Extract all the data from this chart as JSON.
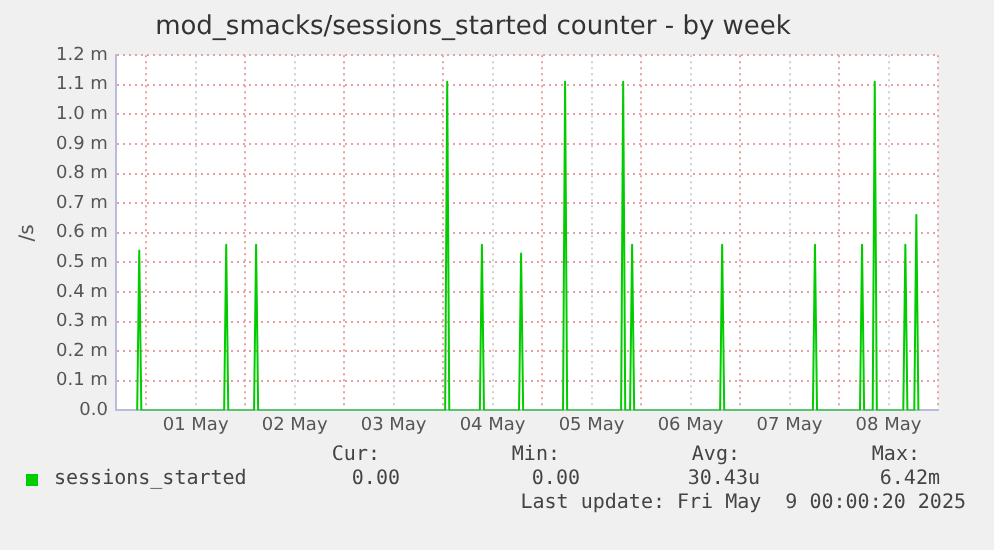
{
  "chart_data": {
    "type": "line",
    "title": "mod_smacks/sessions_started counter - by week",
    "ylabel": "/s",
    "xlim": [
      "2025-04-30T16:40",
      "2025-05-09T00:00"
    ],
    "xticks": [
      {
        "value": "2025-05-01T00:00",
        "label": null
      },
      {
        "value": "2025-05-01T12:00",
        "label": "01 May"
      },
      {
        "value": "2025-05-02T00:00",
        "label": null
      },
      {
        "value": "2025-05-02T12:00",
        "label": "02 May"
      },
      {
        "value": "2025-05-03T00:00",
        "label": null
      },
      {
        "value": "2025-05-03T12:00",
        "label": "03 May"
      },
      {
        "value": "2025-05-04T00:00",
        "label": null
      },
      {
        "value": "2025-05-04T12:00",
        "label": "04 May"
      },
      {
        "value": "2025-05-05T00:00",
        "label": null
      },
      {
        "value": "2025-05-05T12:00",
        "label": "05 May"
      },
      {
        "value": "2025-05-06T00:00",
        "label": null
      },
      {
        "value": "2025-05-06T12:00",
        "label": "06 May"
      },
      {
        "value": "2025-05-07T00:00",
        "label": null
      },
      {
        "value": "2025-05-07T12:00",
        "label": "07 May"
      },
      {
        "value": "2025-05-08T00:00",
        "label": null
      },
      {
        "value": "2025-05-08T12:00",
        "label": "08 May"
      },
      {
        "value": "2025-05-09T00:00",
        "label": null
      }
    ],
    "ylim": [
      0,
      1.2
    ],
    "yticks": [
      {
        "value": 0,
        "label": "0.0"
      },
      {
        "value": 0.1,
        "label": "0.1 m"
      },
      {
        "value": 0.2,
        "label": "0.2 m"
      },
      {
        "value": 0.3,
        "label": "0.3 m"
      },
      {
        "value": 0.4,
        "label": "0.4 m"
      },
      {
        "value": 0.5,
        "label": "0.5 m"
      },
      {
        "value": 0.6,
        "label": "0.6 m"
      },
      {
        "value": 0.7,
        "label": "0.7 m"
      },
      {
        "value": 0.8,
        "label": "0.8 m"
      },
      {
        "value": 0.9,
        "label": "0.9 m"
      },
      {
        "value": 1.0,
        "label": "1.0 m"
      },
      {
        "value": 1.1,
        "label": "1.1 m"
      },
      {
        "value": 1.2,
        "label": "1.2 m"
      }
    ],
    "grid": true,
    "legend": "bottom",
    "marker": "none",
    "line_style": "solid",
    "series": [
      {
        "name": "sessions_started",
        "color": "#00cc00",
        "x": [
          "2025-04-30T21:50",
          "2025-04-30T22:20",
          "2025-04-30T22:50",
          "2025-05-01T18:55",
          "2025-05-01T19:25",
          "2025-05-01T19:55",
          "2025-05-02T02:10",
          "2025-05-02T02:40",
          "2025-05-02T03:10",
          "2025-05-04T00:30",
          "2025-05-04T01:00",
          "2025-05-04T01:30",
          "2025-05-04T08:55",
          "2025-05-04T09:25",
          "2025-05-04T09:55",
          "2025-05-04T18:25",
          "2025-05-04T18:55",
          "2025-05-04T19:25",
          "2025-05-05T05:05",
          "2025-05-05T05:35",
          "2025-05-05T06:05",
          "2025-05-05T19:10",
          "2025-05-05T19:40",
          "2025-05-05T20:10",
          "2025-05-05T21:20",
          "2025-05-05T21:50",
          "2025-05-05T22:20",
          "2025-05-06T19:10",
          "2025-05-06T19:40",
          "2025-05-06T20:10",
          "2025-05-07T17:40",
          "2025-05-07T18:10",
          "2025-05-07T18:40",
          "2025-05-08T05:05",
          "2025-05-08T05:35",
          "2025-05-08T06:05",
          "2025-05-08T08:10",
          "2025-05-08T08:40",
          "2025-05-08T09:10",
          "2025-05-08T15:35",
          "2025-05-08T16:05",
          "2025-05-08T16:35",
          "2025-05-08T18:15",
          "2025-05-08T18:45",
          "2025-05-08T19:15"
        ],
        "values": [
          0,
          0.54,
          0,
          0,
          0.56,
          0,
          0,
          0.56,
          0,
          0,
          1.11,
          0,
          0,
          0.56,
          0,
          0,
          0.53,
          0,
          0,
          1.11,
          0,
          0,
          1.11,
          0,
          0,
          0.56,
          0,
          0,
          0.56,
          0,
          0,
          0.56,
          0,
          0,
          0.56,
          0,
          0,
          1.11,
          0,
          0,
          0.56,
          0,
          0,
          0.66,
          0
        ]
      }
    ],
    "annotations": [
      "Cur:",
      "Min:",
      "Avg:",
      "Max:",
      "0.00",
      "0.00",
      "30.43u",
      "6.42m",
      "Last update: Fri May  9 00:00:20 2025"
    ]
  }
}
